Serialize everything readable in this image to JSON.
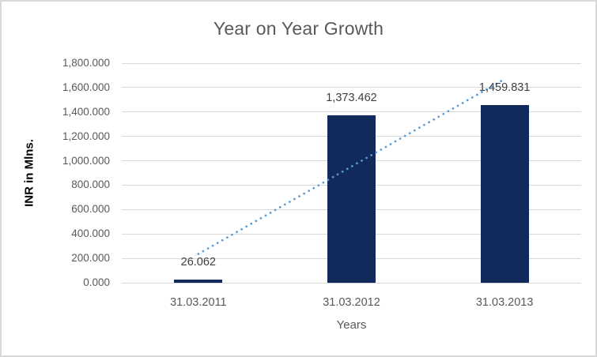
{
  "window": {
    "background": "#ffffff",
    "border_color": "#d9d9d9"
  },
  "chart_data": {
    "type": "bar",
    "title": "Year on Year Growth",
    "xlabel": "Years",
    "ylabel": "INR in Mlns.",
    "categories": [
      "31.03.2011",
      "31.03.2012",
      "31.03.2013"
    ],
    "series": [
      {
        "name": "INR in Mlns.",
        "values": [
          26.062,
          1373.462,
          1459.831
        ]
      }
    ],
    "data_labels": [
      "26.062",
      "1,373.462",
      "1,459.831"
    ],
    "ylim": [
      0,
      1800
    ],
    "y_ticks": [
      {
        "value": 0,
        "label": "0.000"
      },
      {
        "value": 200,
        "label": "200.000"
      },
      {
        "value": 400,
        "label": "400.000"
      },
      {
        "value": 600,
        "label": "600.000"
      },
      {
        "value": 800,
        "label": "800.000"
      },
      {
        "value": 1000,
        "label": "1,000.000"
      },
      {
        "value": 1200,
        "label": "1,200.000"
      },
      {
        "value": 1400,
        "label": "1,400.000"
      },
      {
        "value": 1600,
        "label": "1,600.000"
      },
      {
        "value": 1800,
        "label": "1,800.000"
      }
    ],
    "grid": true,
    "legend": "none",
    "trendline": {
      "type": "linear",
      "style": "dotted",
      "endpoint_values": [
        236,
        1670
      ]
    },
    "colors": {
      "bar": "#12295b",
      "trendline": "#5b9bd5",
      "gridline": "#d9d9d9",
      "title_text": "#595959",
      "tick_text": "#595959",
      "data_label_text": "#404040",
      "axis_title_text": "#000000"
    }
  }
}
